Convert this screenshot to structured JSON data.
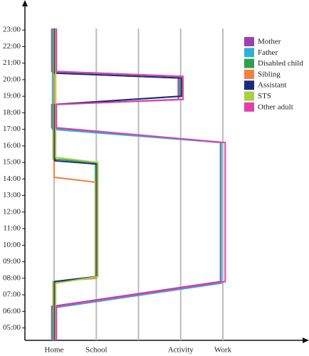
{
  "chart_data": {
    "type": "line",
    "categories": [
      "Home",
      "School",
      null,
      "Activity",
      "Work"
    ],
    "ylim": [
      4.25,
      24.6
    ],
    "yticks": [
      {
        "value": 5,
        "label": "05:00"
      },
      {
        "value": 6,
        "label": "06:00"
      },
      {
        "value": 7,
        "label": "07:00"
      },
      {
        "value": 8,
        "label": "08:00"
      },
      {
        "value": 9,
        "label": "09:00"
      },
      {
        "value": 10,
        "label": "10:00"
      },
      {
        "value": 11,
        "label": "11:00"
      },
      {
        "value": 12,
        "label": "12:00"
      },
      {
        "value": 13,
        "label": "13:00"
      },
      {
        "value": 14,
        "label": "14:00"
      },
      {
        "value": 15,
        "label": "15:00"
      },
      {
        "value": 16,
        "label": "16:00"
      },
      {
        "value": 17,
        "label": "17:00"
      },
      {
        "value": 18,
        "label": "18:00"
      },
      {
        "value": 19,
        "label": "19:00"
      },
      {
        "value": 20,
        "label": "20:00"
      },
      {
        "value": 21,
        "label": "21:00"
      },
      {
        "value": 22,
        "label": "22:00"
      },
      {
        "value": 23,
        "label": "23:00"
      }
    ],
    "series": [
      {
        "name": "Mother",
        "color": "#a040b0",
        "x": [
          0,
          0,
          3,
          3,
          0,
          0,
          4,
          4,
          0,
          0
        ],
        "values": [
          23.1,
          20.5,
          20.2,
          18.8,
          18.5,
          17.1,
          16.2,
          7.8,
          6.3,
          4.25
        ]
      },
      {
        "name": "Father",
        "color": "#30b0d8",
        "x": [
          0,
          0,
          4,
          4,
          0,
          0
        ],
        "values": [
          23.1,
          17.0,
          16.2,
          7.7,
          6.2,
          4.25
        ]
      },
      {
        "name": "Disabled child",
        "color": "#30a050",
        "x": [
          0,
          0,
          3,
          3,
          0,
          0,
          1,
          1,
          0,
          0
        ],
        "values": [
          23.1,
          20.4,
          20.1,
          19.0,
          18.5,
          15.2,
          15.0,
          8.1,
          7.8,
          4.25
        ]
      },
      {
        "name": "Sibling",
        "color": "#f08040",
        "x": [
          0,
          0,
          1,
          1,
          0,
          0
        ],
        "values": [
          23.1,
          14.1,
          13.8,
          8.0,
          7.8,
          4.25
        ]
      },
      {
        "name": "Assistant",
        "color": "#1a2a7e",
        "x": [
          0,
          0,
          3,
          3,
          0,
          0,
          1,
          1,
          0,
          0
        ],
        "values": [
          23.1,
          20.4,
          20.1,
          19.0,
          18.5,
          15.1,
          14.9,
          8.1,
          7.8,
          4.25
        ]
      },
      {
        "name": "STS",
        "color": "#a8d040",
        "x": [
          0,
          0,
          1,
          1,
          0,
          0
        ],
        "values": [
          23.1,
          15.3,
          15.0,
          8.1,
          7.7,
          4.25
        ]
      },
      {
        "name": "Other adult",
        "color": "#e040a8",
        "x": [
          0,
          0,
          3,
          3,
          0,
          0,
          4,
          4,
          0,
          0
        ],
        "values": [
          23.1,
          20.5,
          20.2,
          18.8,
          18.5,
          17.1,
          16.2,
          7.8,
          6.3,
          4.25
        ]
      }
    ]
  }
}
